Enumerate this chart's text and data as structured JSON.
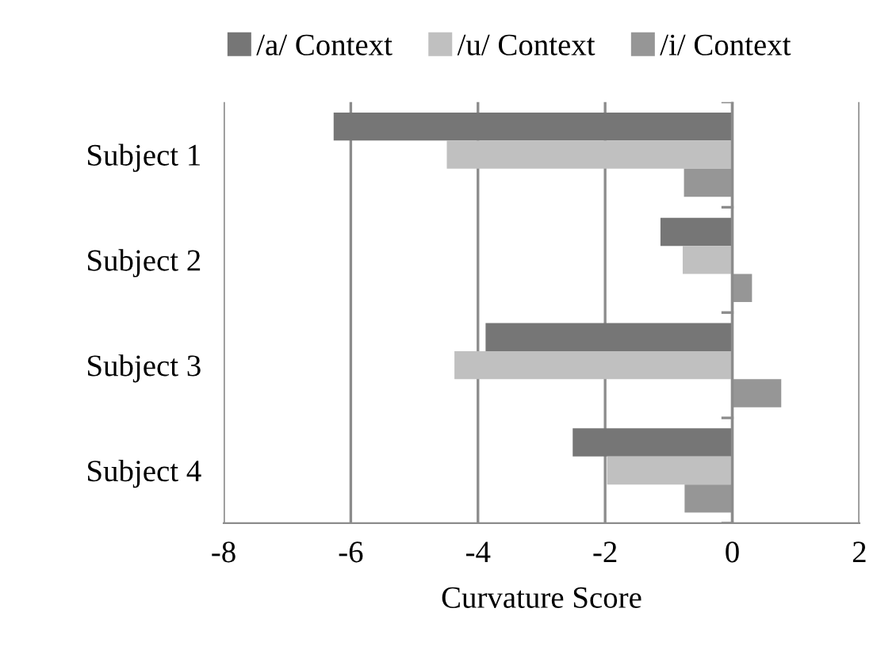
{
  "chart_data": {
    "type": "bar",
    "orientation": "horizontal",
    "xlabel": "Curvature Score",
    "categories": [
      "Subject 1",
      "Subject 2",
      "Subject 3",
      "Subject 4"
    ],
    "series": [
      {
        "name": "/a/ Context",
        "color": "#767676",
        "values": [
          -6.27,
          -1.13,
          -3.88,
          -2.51
        ]
      },
      {
        "name": "/u/ Context",
        "color": "#c0c0c0",
        "values": [
          -4.49,
          -0.78,
          -4.37,
          -1.97
        ]
      },
      {
        "name": "/i/ Context",
        "color": "#969696",
        "values": [
          -0.76,
          0.31,
          0.77,
          -0.75
        ]
      }
    ],
    "xlim": [
      -8,
      2
    ],
    "xticks": [
      -8,
      -6,
      -4,
      -2,
      0,
      2
    ],
    "grid": "x",
    "legend": "top"
  }
}
